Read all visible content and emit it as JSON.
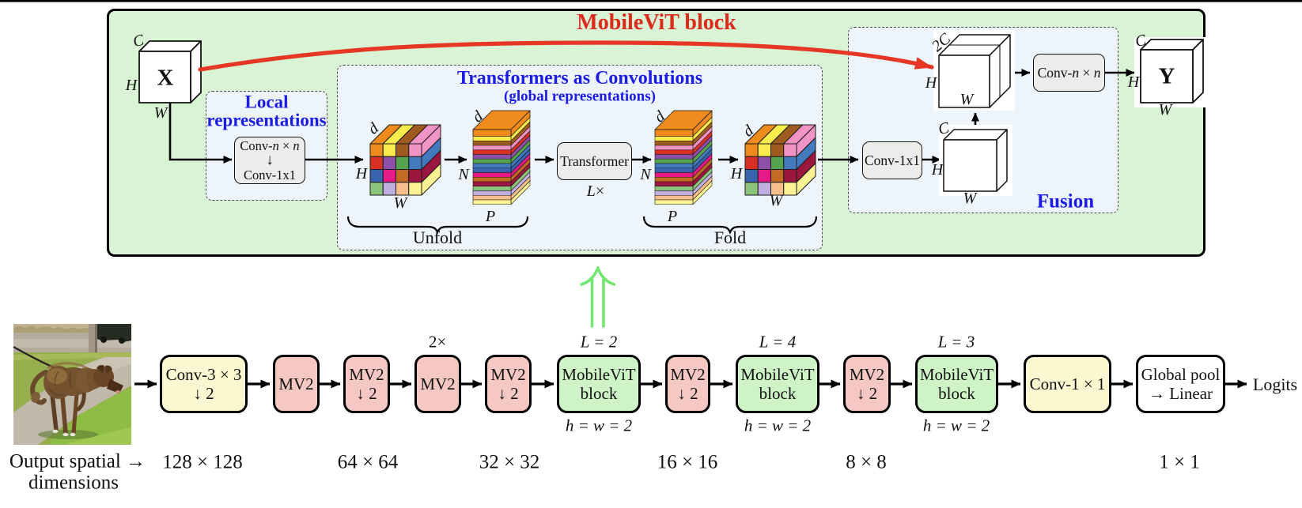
{
  "figure": {
    "title": "MobileViT block",
    "caption_line1": "Output spatial →",
    "caption_line2": "dimensions"
  },
  "colors": {
    "panel_bg": "#d9f3d5",
    "inner_bg": "#edf5fb",
    "gray_box": "#ececea",
    "green_stage": "#cdf3c6",
    "pink_stage": "#f6c8c4",
    "yellow_stage": "#fbf7d1",
    "white_stage": "#ffffff",
    "blue_text": "#1b1be6",
    "red_title": "#dd2a1c",
    "red_arrow": "#e53723",
    "green_arrow": "#74e673"
  },
  "block": {
    "input": {
      "symbol": "X",
      "c": "C",
      "h": "H",
      "w": "W"
    },
    "output": {
      "symbol": "Y",
      "c": "C",
      "h": "H",
      "w": "W"
    },
    "local": {
      "title_line1": "Local",
      "title_line2": "representations",
      "conv1_prefix": "Conv-",
      "conv1_n1": "n",
      "conv1_times": " × ",
      "conv1_n2": "n",
      "down_arrow": "↓",
      "conv2": "Conv-1x1"
    },
    "global_rep": {
      "title": "Transformers as Convolutions",
      "subtitle": "(global representations)",
      "transformer": "Transformer",
      "repeat_var": "L",
      "repeat_times": "×",
      "unfold": "Unfold",
      "fold": "Fold",
      "d": "d",
      "H": "H",
      "W": "W",
      "N": "N",
      "P": "P"
    },
    "fusion": {
      "label": "Fusion",
      "conv1x1": "Conv-1x1",
      "conv_prefix": "Conv-",
      "conv_n1": "n",
      "conv_times": " × ",
      "conv_n2": "n",
      "concat": "2C",
      "c": "C",
      "h": "H",
      "w": "W"
    }
  },
  "tensor_colors": {
    "grid": [
      "#ef8a1c",
      "#fbec4e",
      "#a05b20",
      "#f293c6",
      "#d93026",
      "#8e4fa8",
      "#57a44e",
      "#4379bd",
      "#3a63ad",
      "#e61a87",
      "#c46a22",
      "#9c1740",
      "#8cc47c",
      "#c0aede",
      "#f5be8a",
      "#fbf393"
    ],
    "stack_top": "#ef8a1c",
    "stack_layers": [
      "#fbec4e",
      "#a05b20",
      "#f293c6",
      "#d93026",
      "#8e4fa8",
      "#57a44e",
      "#4379bd",
      "#3a63ad",
      "#e61a87",
      "#c46a22",
      "#9c1740",
      "#8cc47c",
      "#c0aede",
      "#f5be8a",
      "#fbf393"
    ]
  },
  "pipeline": {
    "stages": [
      {
        "lines": [
          "Conv-3 × 3",
          "↓ 2"
        ]
      },
      {
        "lines": [
          "MV2"
        ]
      },
      {
        "lines": [
          "MV2",
          "↓ 2"
        ]
      },
      {
        "lines": [
          "MV2"
        ],
        "above": "2×"
      },
      {
        "lines": [
          "MV2",
          "↓ 2"
        ]
      },
      {
        "lines": [
          "MobileViT",
          "block"
        ],
        "above": "L = 2",
        "below": "h = w = 2"
      },
      {
        "lines": [
          "MV2",
          "↓ 2"
        ]
      },
      {
        "lines": [
          "MobileViT",
          "block"
        ],
        "above": "L = 4",
        "below": "h = w = 2"
      },
      {
        "lines": [
          "MV2",
          "↓ 2"
        ]
      },
      {
        "lines": [
          "MobileViT",
          "block"
        ],
        "above": "L = 3",
        "below": "h = w = 2"
      },
      {
        "lines": [
          "Conv-1 × 1"
        ]
      },
      {
        "lines": [
          "Global pool",
          "→ Linear"
        ]
      }
    ],
    "output": "Logits",
    "spatial_dims": [
      "128 × 128",
      "64 × 64",
      "32 × 32",
      "16 × 16",
      "8 × 8",
      "1 × 1"
    ]
  }
}
